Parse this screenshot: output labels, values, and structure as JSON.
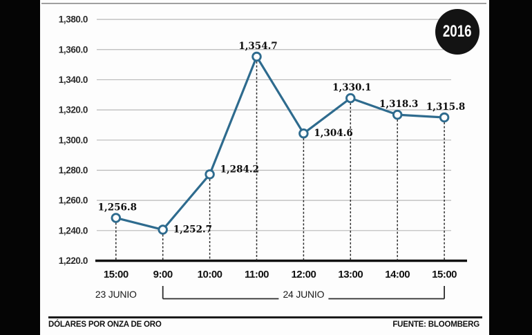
{
  "badge": {
    "year": "2016"
  },
  "footer": {
    "left": "DÓLARES POR ONZA DE ORO",
    "right": "FUENTE: BLOOMBERG"
  },
  "chart_data": {
    "type": "line",
    "title": "",
    "x": [
      "15:00",
      "9:00",
      "10:00",
      "11:00",
      "12:00",
      "13:00",
      "14:00",
      "15:00"
    ],
    "values": [
      1256.8,
      1252.7,
      1284.2,
      1354.7,
      1304.6,
      1330.1,
      1318.3,
      1315.8
    ],
    "point_labels": [
      "1,256.8",
      "1,252.7",
      "1,284.2",
      "1,354.7",
      "1,304.6",
      "1,330.1",
      "1,318.3",
      "1,315.8"
    ],
    "plotted_values": [
      1248.4,
      1240.6,
      1277.3,
      1355.3,
      1304.4,
      1327.8,
      1316.8,
      1315.0
    ],
    "label_placement": [
      "above",
      "right",
      "right-above",
      "above",
      "right",
      "above",
      "above",
      "above"
    ],
    "y_ticks": [
      "1,380.0",
      "1,360.0",
      "1,340.0",
      "1,320.0",
      "1,300.0",
      "1,280.0",
      "1,260.0",
      "1,240.0",
      "1,220.0"
    ],
    "y_tick_values": [
      1380,
      1360,
      1340,
      1320,
      1300,
      1280,
      1260,
      1240,
      1220
    ],
    "ylim": [
      1220,
      1380
    ],
    "x_groups": [
      {
        "label": "23 JUNIO",
        "span": [
          0,
          0
        ]
      },
      {
        "label": "24 JUNIO",
        "span": [
          1,
          7
        ]
      }
    ],
    "grid": "horizontal-only",
    "legend": "none",
    "line_color": "#2e6b8e",
    "marker": "open-circle",
    "dropline_style": "dashed-black",
    "ylabel": "Dólares por onza de oro",
    "source": "Bloomberg"
  }
}
